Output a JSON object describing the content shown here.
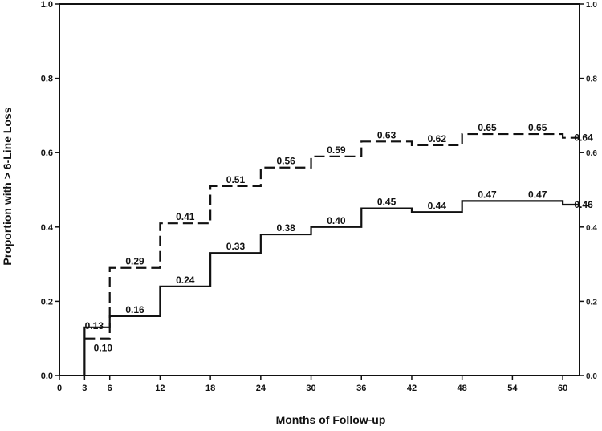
{
  "chart_data": {
    "type": "line",
    "xlabel": "Months of Follow-up",
    "ylabel": "Proportion with > 6-Line Loss",
    "xlim": [
      0,
      62
    ],
    "ylim": [
      0,
      1.0
    ],
    "x_ticks": [
      0,
      3,
      6,
      12,
      18,
      24,
      30,
      36,
      42,
      48,
      54,
      60
    ],
    "y_ticks": [
      0.0,
      0.2,
      0.4,
      0.6,
      0.8,
      1.0
    ],
    "y_tick_labels": [
      "0.0",
      "0.2",
      "0.4",
      "0.6",
      "0.8",
      "1.0"
    ],
    "right_axis_tick_labels": [
      "0.0",
      "0.2",
      "0.4",
      "0.6",
      "0.8",
      "1.0"
    ],
    "grid": false,
    "step_style": "step-after",
    "series": [
      {
        "style": "solid",
        "x": [
          3,
          6,
          12,
          18,
          24,
          30,
          36,
          42,
          48,
          54,
          60,
          62
        ],
        "y": [
          0.13,
          0.16,
          0.24,
          0.33,
          0.38,
          0.4,
          0.45,
          0.44,
          0.47,
          0.47,
          0.46,
          0.46
        ],
        "labels": [
          {
            "x": 3,
            "y": 0.13,
            "text": "0.13"
          },
          {
            "x": 6,
            "y": 0.16,
            "text": "0.16"
          },
          {
            "x": 12,
            "y": 0.24,
            "text": "0.24"
          },
          {
            "x": 18,
            "y": 0.33,
            "text": "0.33"
          },
          {
            "x": 24,
            "y": 0.38,
            "text": "0.38"
          },
          {
            "x": 30,
            "y": 0.4,
            "text": "0.40"
          },
          {
            "x": 36,
            "y": 0.45,
            "text": "0.45"
          },
          {
            "x": 42,
            "y": 0.44,
            "text": "0.44"
          },
          {
            "x": 48,
            "y": 0.47,
            "text": "0.47"
          },
          {
            "x": 54,
            "y": 0.47,
            "text": "0.47"
          },
          {
            "x": 60,
            "y": 0.46,
            "text": "0.46"
          }
        ]
      },
      {
        "style": "dashed",
        "x": [
          3,
          6,
          12,
          18,
          24,
          30,
          36,
          42,
          48,
          54,
          60,
          62
        ],
        "y": [
          0.1,
          0.29,
          0.41,
          0.51,
          0.56,
          0.59,
          0.63,
          0.62,
          0.65,
          0.65,
          0.64,
          0.64
        ],
        "labels": [
          {
            "x": 3,
            "y": 0.1,
            "text": "0.10"
          },
          {
            "x": 6,
            "y": 0.29,
            "text": "0.29"
          },
          {
            "x": 12,
            "y": 0.41,
            "text": "0.41"
          },
          {
            "x": 18,
            "y": 0.51,
            "text": "0.51"
          },
          {
            "x": 24,
            "y": 0.56,
            "text": "0.56"
          },
          {
            "x": 30,
            "y": 0.59,
            "text": "0.59"
          },
          {
            "x": 36,
            "y": 0.63,
            "text": "0.63"
          },
          {
            "x": 42,
            "y": 0.62,
            "text": "0.62"
          },
          {
            "x": 48,
            "y": 0.65,
            "text": "0.65"
          },
          {
            "x": 54,
            "y": 0.65,
            "text": "0.65"
          },
          {
            "x": 60,
            "y": 0.64,
            "text": "0.64"
          }
        ]
      }
    ]
  }
}
